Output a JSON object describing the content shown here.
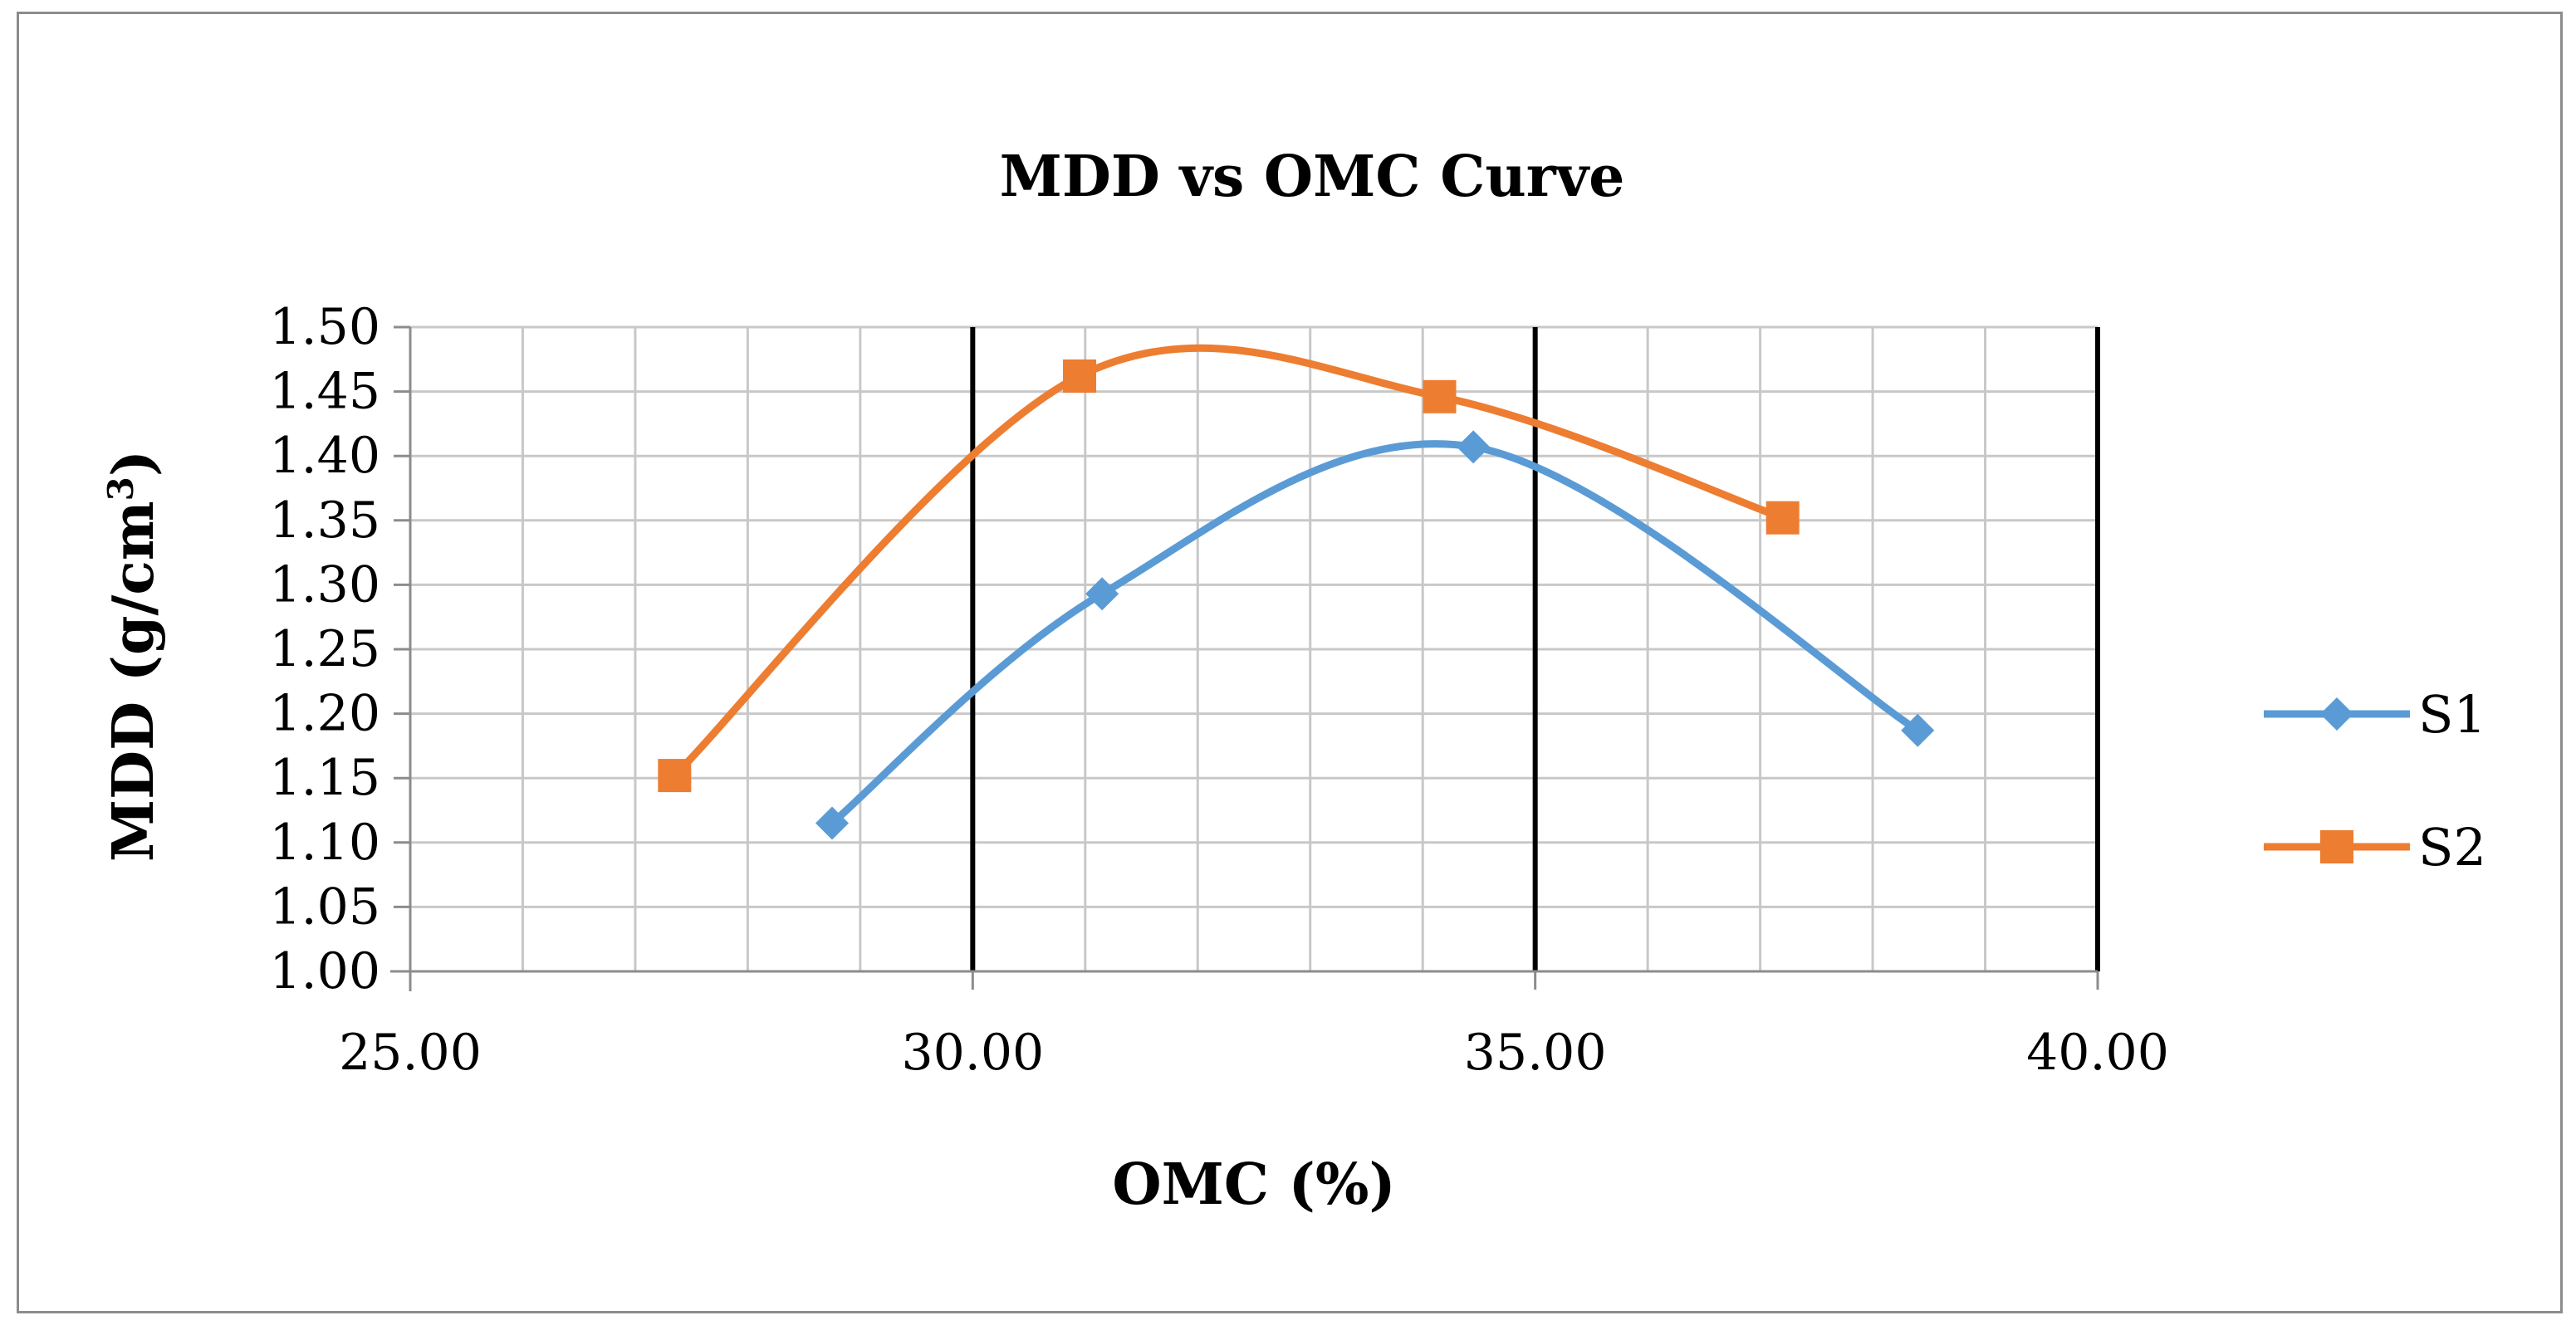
{
  "chart_data": {
    "type": "scatter",
    "title": "MDD vs OMC Curve",
    "xlabel": "OMC (%)",
    "ylabel_main": "MDD (g/cm",
    "ylabel_sup": "3",
    "ylabel_close": ")",
    "xlim": [
      25,
      40
    ],
    "ylim": [
      1.0,
      1.5
    ],
    "x_major": [
      25,
      30,
      35,
      40
    ],
    "x_minor_step": 1,
    "y_step": 0.05,
    "x_tick_labels": [
      "25.00",
      "30.00",
      "35.00",
      "40.00"
    ],
    "y_tick_labels": [
      "1.00",
      "1.05",
      "1.10",
      "1.15",
      "1.20",
      "1.25",
      "1.30",
      "1.35",
      "1.40",
      "1.45",
      "1.50"
    ],
    "grid": true,
    "legend_position": "right",
    "series": [
      {
        "name": "S1",
        "color": "#5B9BD5",
        "marker": "diamond",
        "points": [
          [
            28.75,
            1.115
          ],
          [
            31.15,
            1.293
          ],
          [
            34.45,
            1.407
          ],
          [
            38.4,
            1.187
          ]
        ]
      },
      {
        "name": "S2",
        "color": "#ED7D31",
        "marker": "square",
        "points": [
          [
            27.35,
            1.152
          ],
          [
            30.95,
            1.462
          ],
          [
            34.15,
            1.446
          ],
          [
            37.2,
            1.352
          ]
        ]
      }
    ]
  }
}
